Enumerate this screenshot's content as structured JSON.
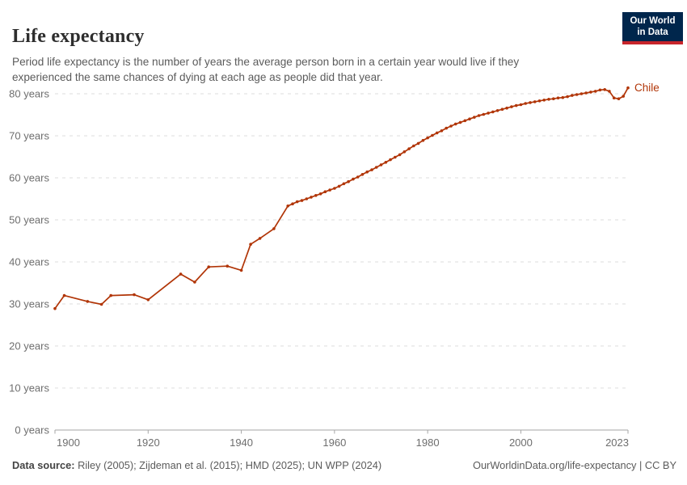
{
  "header": {
    "title": "Life expectancy",
    "subtitle": "Period life expectancy is the number of years the average person born in a certain year would live if they experienced the same chances of dying at each age as people did that year.",
    "logo": {
      "line1": "Our World",
      "line2": "in Data",
      "bg_color": "#00264c",
      "accent_color": "#c7252b"
    }
  },
  "footer": {
    "source_label": "Data source:",
    "source_text": " Riley (2005); Zijdeman et al. (2015); HMD (2025); UN WPP (2024)",
    "link_text": "OurWorldinData.org/life-expectancy | CC BY"
  },
  "chart_data": {
    "type": "line",
    "title": "Life expectancy",
    "xlabel": "",
    "ylabel": "",
    "grid": "dashed-horizontal",
    "legend_position": "end-of-line-label",
    "xlim": [
      1900,
      2023
    ],
    "ylim": [
      0,
      80
    ],
    "x_ticks": [
      1900,
      1920,
      1940,
      1960,
      1980,
      2000,
      2023
    ],
    "y_ticks": [
      0,
      10,
      20,
      30,
      40,
      50,
      60,
      70,
      80
    ],
    "y_tick_suffix": " years",
    "axis_color": "#a6a6a6",
    "grid_color": "#dedede",
    "series": [
      {
        "name": "Chile",
        "color": "#b13507",
        "points": [
          [
            1900,
            28.9
          ],
          [
            1902,
            32.0
          ],
          [
            1907,
            30.6
          ],
          [
            1910,
            29.9
          ],
          [
            1912,
            32.0
          ],
          [
            1917,
            32.2
          ],
          [
            1920,
            31.0
          ],
          [
            1927,
            37.1
          ],
          [
            1930,
            35.2
          ],
          [
            1933,
            38.8
          ],
          [
            1937,
            39.0
          ],
          [
            1940,
            38.0
          ],
          [
            1942,
            44.2
          ],
          [
            1944,
            45.6
          ],
          [
            1947,
            47.9
          ],
          [
            1950,
            53.3
          ],
          [
            1951,
            53.8
          ],
          [
            1952,
            54.3
          ],
          [
            1953,
            54.6
          ],
          [
            1954,
            55.0
          ],
          [
            1955,
            55.4
          ],
          [
            1956,
            55.8
          ],
          [
            1957,
            56.2
          ],
          [
            1958,
            56.7
          ],
          [
            1959,
            57.1
          ],
          [
            1960,
            57.5
          ],
          [
            1961,
            58.0
          ],
          [
            1962,
            58.6
          ],
          [
            1963,
            59.1
          ],
          [
            1964,
            59.7
          ],
          [
            1965,
            60.2
          ],
          [
            1966,
            60.8
          ],
          [
            1967,
            61.4
          ],
          [
            1968,
            61.9
          ],
          [
            1969,
            62.5
          ],
          [
            1970,
            63.1
          ],
          [
            1971,
            63.7
          ],
          [
            1972,
            64.3
          ],
          [
            1973,
            64.9
          ],
          [
            1974,
            65.5
          ],
          [
            1975,
            66.2
          ],
          [
            1976,
            66.9
          ],
          [
            1977,
            67.6
          ],
          [
            1978,
            68.2
          ],
          [
            1979,
            68.9
          ],
          [
            1980,
            69.5
          ],
          [
            1981,
            70.1
          ],
          [
            1982,
            70.7
          ],
          [
            1983,
            71.2
          ],
          [
            1984,
            71.8
          ],
          [
            1985,
            72.3
          ],
          [
            1986,
            72.8
          ],
          [
            1987,
            73.2
          ],
          [
            1988,
            73.6
          ],
          [
            1989,
            74.0
          ],
          [
            1990,
            74.4
          ],
          [
            1991,
            74.8
          ],
          [
            1992,
            75.1
          ],
          [
            1993,
            75.4
          ],
          [
            1994,
            75.7
          ],
          [
            1995,
            76.0
          ],
          [
            1996,
            76.3
          ],
          [
            1997,
            76.6
          ],
          [
            1998,
            76.9
          ],
          [
            1999,
            77.2
          ],
          [
            2000,
            77.4
          ],
          [
            2001,
            77.7
          ],
          [
            2002,
            77.9
          ],
          [
            2003,
            78.1
          ],
          [
            2004,
            78.3
          ],
          [
            2005,
            78.5
          ],
          [
            2006,
            78.7
          ],
          [
            2007,
            78.8
          ],
          [
            2008,
            79.0
          ],
          [
            2009,
            79.1
          ],
          [
            2010,
            79.3
          ],
          [
            2011,
            79.6
          ],
          [
            2012,
            79.8
          ],
          [
            2013,
            80.0
          ],
          [
            2014,
            80.2
          ],
          [
            2015,
            80.4
          ],
          [
            2016,
            80.6
          ],
          [
            2017,
            80.9
          ],
          [
            2018,
            81.0
          ],
          [
            2019,
            80.6
          ],
          [
            2020,
            79.0
          ],
          [
            2021,
            78.8
          ],
          [
            2022,
            79.4
          ],
          [
            2023,
            81.4
          ]
        ]
      }
    ]
  }
}
